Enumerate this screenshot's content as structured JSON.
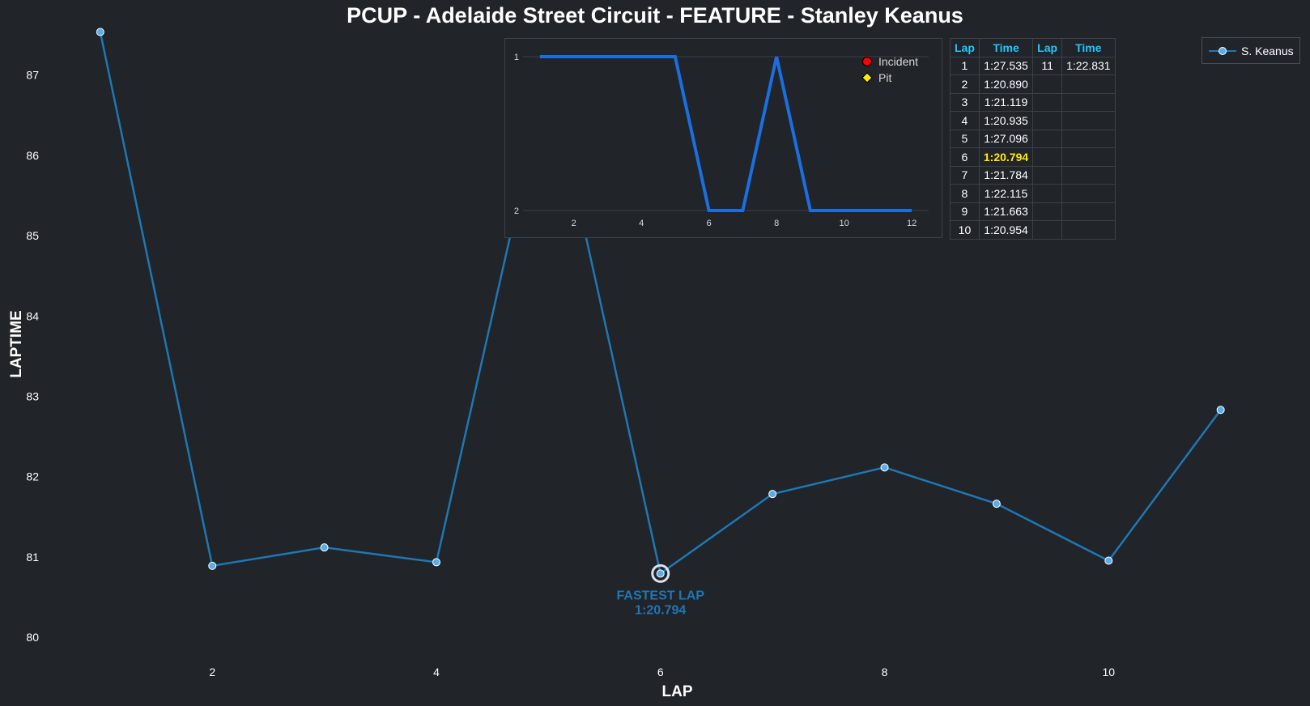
{
  "title": "PCUP - Adelaide Street Circuit - FEATURE - Stanley Keanus",
  "colors": {
    "background": "#212429",
    "series": "#1f77b4",
    "marker_fill": "#5aaee8",
    "position_line": "#1a6fe0",
    "table_header": "#1ec8ff",
    "fastest_highlight": "#ffeb00",
    "incident_marker": "#ff0000",
    "pit_marker": "#ffeb00"
  },
  "chart_data": [
    {
      "type": "line",
      "title": "PCUP - Adelaide Street Circuit - FEATURE - Stanley Keanus",
      "xlabel": "LAP",
      "ylabel": "LAPTIME",
      "xlim": [
        0.9,
        11.4
      ],
      "ylim": [
        79.75,
        87.55
      ],
      "xticks": [
        2,
        4,
        6,
        8,
        10
      ],
      "yticks": [
        80,
        81,
        82,
        83,
        84,
        85,
        86,
        87
      ],
      "grid": false,
      "legend": "top-right",
      "series": [
        {
          "name": "S. Keanus",
          "x": [
            1,
            2,
            3,
            4,
            5,
            6,
            7,
            8,
            9,
            10,
            11
          ],
          "y": [
            87.535,
            80.89,
            81.119,
            80.935,
            87.096,
            80.794,
            81.784,
            82.115,
            81.663,
            80.954,
            82.831
          ]
        }
      ],
      "annotations": [
        {
          "x": 6,
          "y": 80.794,
          "line1": "FASTEST LAP",
          "line2": "1:20.794"
        }
      ]
    },
    {
      "type": "line",
      "xlim": [
        0.5,
        12.5
      ],
      "ylim": [
        2,
        1
      ],
      "xticks": [
        2,
        4,
        6,
        8,
        10,
        12
      ],
      "yticks": [
        1,
        2
      ],
      "grid": true,
      "legend": "top-right",
      "legend_entries": [
        {
          "label": "Incident",
          "marker": "circle",
          "color": "#ff0000"
        },
        {
          "label": "Pit",
          "marker": "diamond",
          "color": "#ffeb00"
        }
      ],
      "series": [
        {
          "x": [
            1,
            2,
            3,
            4,
            5,
            6,
            7,
            8,
            9,
            10,
            11,
            12
          ],
          "y": [
            1,
            1,
            1,
            1,
            1,
            2,
            2,
            1,
            2,
            2,
            2,
            2
          ]
        }
      ]
    }
  ],
  "lap_table": {
    "headers": [
      "Lap",
      "Time",
      "Lap",
      "Time"
    ],
    "rows": [
      [
        "1",
        "1:27.535",
        "11",
        "1:22.831"
      ],
      [
        "2",
        "1:20.890",
        "",
        ""
      ],
      [
        "3",
        "1:21.119",
        "",
        ""
      ],
      [
        "4",
        "1:20.935",
        "",
        ""
      ],
      [
        "5",
        "1:27.096",
        "",
        ""
      ],
      [
        "6",
        "1:20.794",
        "",
        ""
      ],
      [
        "7",
        "1:21.784",
        "",
        ""
      ],
      [
        "8",
        "1:22.115",
        "",
        ""
      ],
      [
        "9",
        "1:21.663",
        "",
        ""
      ],
      [
        "10",
        "1:20.954",
        "",
        ""
      ]
    ],
    "fastest_row": 5
  }
}
